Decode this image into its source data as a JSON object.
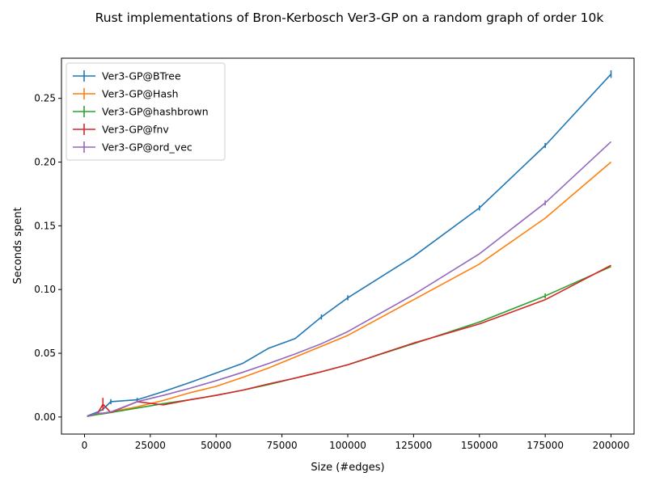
{
  "chart_data": {
    "type": "line",
    "title": "Rust implementations of Bron-Kerbosch Ver3-GP on a random graph of order 10k",
    "xlabel": "Size (#edges)",
    "ylabel": "Seconds spent",
    "xlim": [
      -8750,
      208750
    ],
    "ylim": [
      -0.0134,
      0.2815
    ],
    "xticks": [
      0,
      25000,
      50000,
      75000,
      100000,
      125000,
      150000,
      175000,
      200000
    ],
    "xtick_labels": [
      "0",
      "25000",
      "50000",
      "75000",
      "100000",
      "125000",
      "150000",
      "175000",
      "200000"
    ],
    "yticks": [
      0.0,
      0.05,
      0.1,
      0.15,
      0.2,
      0.25
    ],
    "ytick_labels": [
      "0.00",
      "0.05",
      "0.10",
      "0.15",
      "0.20",
      "0.25"
    ],
    "grid": false,
    "legend_position": "top-left",
    "series": [
      {
        "name": "Ver3-GP@BTree",
        "color": "#1f77b4",
        "x": [
          1000,
          5000,
          7000,
          10000,
          20000,
          30000,
          40000,
          50000,
          60000,
          70000,
          80000,
          90000,
          100000,
          125000,
          150000,
          175000,
          200000
        ],
        "y": [
          0.0008,
          0.004,
          0.006,
          0.012,
          0.0135,
          0.02,
          0.027,
          0.0345,
          0.042,
          0.054,
          0.0615,
          0.0785,
          0.0935,
          0.126,
          0.164,
          0.213,
          0.269
        ],
        "err": [
          0,
          0,
          0,
          0.002,
          0.0015,
          0,
          0,
          0,
          0,
          0,
          0,
          0.002,
          0.002,
          0,
          0.002,
          0.002,
          0.003
        ]
      },
      {
        "name": "Ver3-GP@Hash",
        "color": "#ff7f0e",
        "x": [
          1000,
          5000,
          7000,
          10000,
          20000,
          30000,
          40000,
          50000,
          60000,
          70000,
          80000,
          90000,
          100000,
          125000,
          150000,
          175000,
          200000
        ],
        "y": [
          0.0006,
          0.002,
          0.003,
          0.004,
          0.008,
          0.013,
          0.019,
          0.024,
          0.031,
          0.0385,
          0.047,
          0.0555,
          0.064,
          0.092,
          0.12,
          0.156,
          0.2
        ],
        "err": [
          0,
          0,
          0,
          0,
          0,
          0,
          0,
          0,
          0,
          0,
          0,
          0,
          0,
          0,
          0,
          0,
          0
        ]
      },
      {
        "name": "Ver3-GP@hashbrown",
        "color": "#2ca02c",
        "x": [
          1000,
          5000,
          7000,
          10000,
          20000,
          30000,
          40000,
          50000,
          60000,
          70000,
          80000,
          90000,
          100000,
          125000,
          150000,
          175000,
          200000
        ],
        "y": [
          0.0005,
          0.002,
          0.0025,
          0.0035,
          0.007,
          0.0105,
          0.0135,
          0.017,
          0.021,
          0.0255,
          0.0305,
          0.0355,
          0.041,
          0.0575,
          0.0745,
          0.095,
          0.118
        ],
        "err": [
          0,
          0,
          0,
          0,
          0,
          0,
          0,
          0,
          0,
          0,
          0,
          0,
          0,
          0,
          0,
          0.002,
          0
        ]
      },
      {
        "name": "Ver3-GP@fnv",
        "color": "#d62728",
        "x": [
          1000,
          5000,
          7000,
          10000,
          20000,
          30000,
          40000,
          50000,
          60000,
          70000,
          80000,
          90000,
          100000,
          125000,
          150000,
          175000,
          200000
        ],
        "y": [
          0.0005,
          0.003,
          0.01,
          0.0035,
          0.012,
          0.0095,
          0.0135,
          0.017,
          0.021,
          0.026,
          0.0305,
          0.0355,
          0.041,
          0.058,
          0.073,
          0.092,
          0.119
        ],
        "err": [
          0,
          0,
          0.005,
          0,
          0,
          0,
          0,
          0,
          0,
          0,
          0,
          0,
          0,
          0,
          0,
          0,
          0
        ]
      },
      {
        "name": "Ver3-GP@ord_vec",
        "color": "#9467bd",
        "x": [
          1000,
          5000,
          7000,
          10000,
          20000,
          30000,
          40000,
          50000,
          60000,
          70000,
          80000,
          90000,
          100000,
          125000,
          150000,
          175000,
          200000
        ],
        "y": [
          0.0007,
          0.003,
          0.003,
          0.004,
          0.012,
          0.017,
          0.0225,
          0.0285,
          0.035,
          0.042,
          0.0495,
          0.0575,
          0.067,
          0.096,
          0.128,
          0.168,
          0.216
        ],
        "err": [
          0,
          0,
          0,
          0,
          0,
          0,
          0,
          0,
          0,
          0,
          0,
          0,
          0,
          0,
          0,
          0.002,
          0
        ]
      }
    ]
  }
}
